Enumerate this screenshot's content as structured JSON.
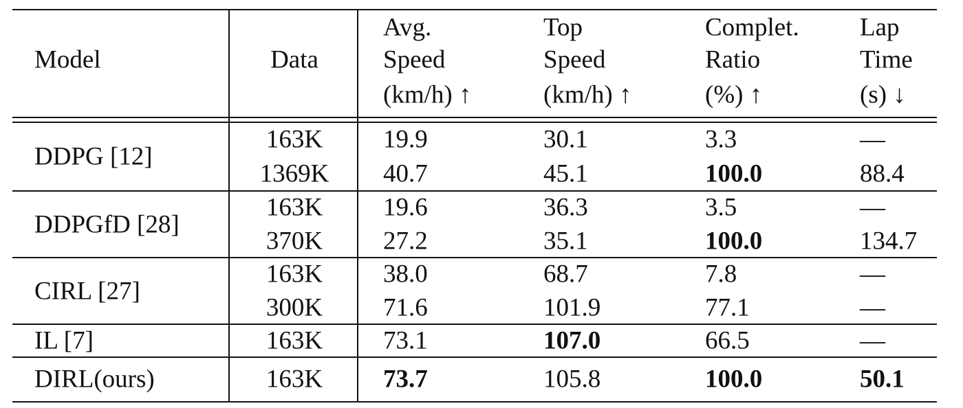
{
  "table": {
    "header": [
      [
        "Model"
      ],
      [
        "Data"
      ],
      [
        "Avg.",
        "Speed",
        "(km/h) ↑"
      ],
      [
        "Top",
        "Speed",
        "(km/h) ↑"
      ],
      [
        "Complet.",
        "Ratio",
        "(%) ↑"
      ],
      [
        "Lap",
        "Time",
        "(s) ↓"
      ]
    ],
    "groups": [
      {
        "model": "DDPG [12]",
        "rows": [
          [
            "163K",
            "19.9",
            "30.1",
            "3.3",
            "—"
          ],
          [
            "1369K",
            "40.7",
            "45.1",
            {
              "text": "100.0",
              "bold": true
            },
            "88.4"
          ]
        ]
      },
      {
        "model": "DDPGfD [28]",
        "rows": [
          [
            "163K",
            "19.6",
            "36.3",
            "3.5",
            "—"
          ],
          [
            "370K",
            "27.2",
            "35.1",
            {
              "text": "100.0",
              "bold": true
            },
            "134.7"
          ]
        ]
      },
      {
        "model": "CIRL [27]",
        "rows": [
          [
            "163K",
            "38.0",
            "68.7",
            "7.8",
            "—"
          ],
          [
            "300K",
            "71.6",
            "101.9",
            "77.1",
            "—"
          ]
        ]
      },
      {
        "model": "IL [7]",
        "rows": [
          [
            "163K",
            "73.1",
            {
              "text": "107.0",
              "bold": true
            },
            "66.5",
            "—"
          ]
        ]
      },
      {
        "model": "DIRL(ours)",
        "rows": [
          [
            "163K",
            {
              "text": "73.7",
              "bold": true
            },
            "105.8",
            {
              "text": "100.0",
              "bold": true
            },
            {
              "text": "50.1",
              "bold": true
            }
          ]
        ]
      }
    ]
  }
}
